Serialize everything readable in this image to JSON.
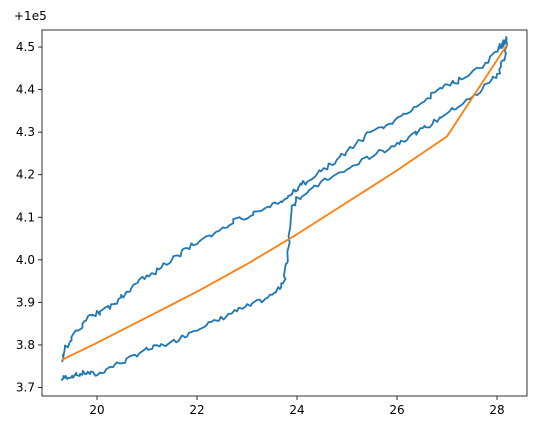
{
  "chart_data": {
    "type": "line",
    "title": "",
    "xlabel": "",
    "ylabel": "",
    "y_offset_label": "+1e5",
    "xlim": [
      18.9,
      28.6
    ],
    "ylim": [
      3.68,
      4.54
    ],
    "x_ticks": [
      20,
      22,
      24,
      26,
      28
    ],
    "x_tick_labels": [
      "20",
      "22",
      "24",
      "26",
      "28"
    ],
    "y_ticks": [
      3.7,
      3.8,
      3.9,
      4.0,
      4.1,
      4.2,
      4.3,
      4.4,
      4.5
    ],
    "y_tick_labels": [
      "3.7",
      "3.8",
      "3.9",
      "4.0",
      "4.1",
      "4.2",
      "4.3",
      "4.4",
      "4.5"
    ],
    "grid": false,
    "legend": "none",
    "series": [
      {
        "color": "#1f77b4",
        "style": "noisy loop",
        "x": [
          19.3,
          19.4,
          19.6,
          19.8,
          20.0,
          20.3,
          20.6,
          20.9,
          21.2,
          21.5,
          21.8,
          22.1,
          22.4,
          22.7,
          23.0,
          23.3,
          23.6,
          23.75,
          23.8,
          23.9,
          24.0,
          24.3,
          24.6,
          24.9,
          25.2,
          25.5,
          25.8,
          26.1,
          26.4,
          26.7,
          27.0,
          27.3,
          27.6,
          27.9,
          28.05,
          28.15,
          28.2,
          28.15,
          28.1,
          28.05,
          27.8,
          27.5,
          27.2,
          26.9,
          26.6,
          26.3,
          26.0,
          25.7,
          25.4,
          25.1,
          24.8,
          24.5,
          24.2,
          24.0,
          23.9,
          23.8,
          23.6,
          23.3,
          23.0,
          22.7,
          22.4,
          22.1,
          21.8,
          21.5,
          21.2,
          20.9,
          20.6,
          20.4,
          20.2,
          20.0,
          19.8,
          19.6,
          19.4,
          19.3
        ],
        "y": [
          3.72,
          3.725,
          3.73,
          3.735,
          3.73,
          3.75,
          3.765,
          3.785,
          3.795,
          3.805,
          3.825,
          3.845,
          3.855,
          3.875,
          3.89,
          3.905,
          3.925,
          3.955,
          4.0,
          4.12,
          4.145,
          4.165,
          4.19,
          4.205,
          4.225,
          4.245,
          4.26,
          4.28,
          4.3,
          4.32,
          4.345,
          4.365,
          4.39,
          4.425,
          4.44,
          4.48,
          4.52,
          4.51,
          4.505,
          4.5,
          4.465,
          4.44,
          4.42,
          4.405,
          4.38,
          4.355,
          4.33,
          4.31,
          4.295,
          4.265,
          4.235,
          4.21,
          4.185,
          4.17,
          4.155,
          4.14,
          4.135,
          4.12,
          4.1,
          4.09,
          4.065,
          4.05,
          4.025,
          4.0,
          3.975,
          3.955,
          3.925,
          3.9,
          3.885,
          3.875,
          3.86,
          3.835,
          3.8,
          3.76
        ]
      },
      {
        "color": "#ff7f0e",
        "style": "smooth",
        "x": [
          19.3,
          20.0,
          21.0,
          22.0,
          23.0,
          24.0,
          25.0,
          26.0,
          27.0,
          28.2
        ],
        "y": [
          3.765,
          3.805,
          3.865,
          3.925,
          3.99,
          4.06,
          4.135,
          4.21,
          4.29,
          4.505
        ]
      }
    ]
  }
}
